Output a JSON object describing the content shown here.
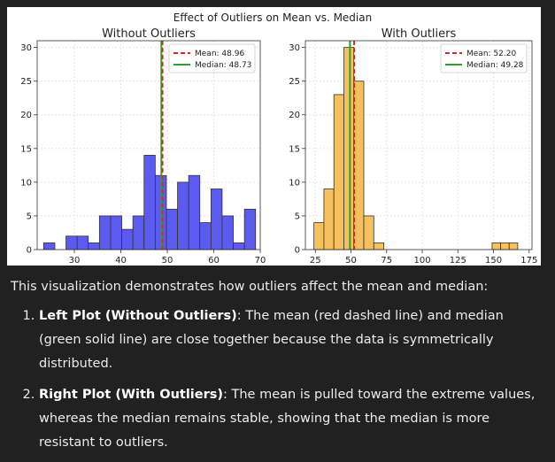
{
  "suptitle": "Effect of Outliers on Mean vs. Median",
  "chart_data": [
    {
      "type": "bar",
      "title": "Without Outliers",
      "xlim": [
        22,
        70
      ],
      "ylim": [
        0,
        31
      ],
      "xticks": [
        30,
        40,
        50,
        60,
        70
      ],
      "yticks": [
        0,
        5,
        10,
        15,
        20,
        25,
        30
      ],
      "bin_edges": [
        23.4,
        25.8,
        28.2,
        30.6,
        33.0,
        35.4,
        37.8,
        40.2,
        42.6,
        45.0,
        47.4,
        49.8,
        52.2,
        54.6,
        57.0,
        59.4,
        61.8,
        64.2,
        66.6,
        69.0
      ],
      "counts": [
        1,
        0,
        2,
        2,
        1,
        5,
        5,
        3,
        5,
        14,
        11,
        6,
        10,
        11,
        4,
        9,
        5,
        1,
        6
      ],
      "bar_color": "#5b5bf2",
      "mean": 48.96,
      "median": 48.73,
      "legend": [
        {
          "label": "Mean: 48.96",
          "color": "#d62728",
          "style": "dashed"
        },
        {
          "label": "Median: 48.73",
          "color": "#2ca02c",
          "style": "solid"
        }
      ]
    },
    {
      "type": "bar",
      "title": "With Outliers",
      "xlim": [
        18,
        177
      ],
      "ylim": [
        0,
        31
      ],
      "xticks": [
        25,
        50,
        75,
        100,
        125,
        150,
        175
      ],
      "yticks": [
        0,
        5,
        10,
        15,
        20,
        25,
        30
      ],
      "bin_edges": [
        24,
        31,
        38,
        45,
        52,
        59,
        66,
        73
      ],
      "counts": [
        4,
        9,
        23,
        30,
        25,
        5,
        1
      ],
      "outlier_edges": [
        149,
        155,
        161,
        167
      ],
      "outlier_counts": [
        1,
        1,
        1
      ],
      "bar_color": "#f6c05c",
      "mean": 52.2,
      "median": 49.28,
      "legend": [
        {
          "label": "Mean: 52.20",
          "color": "#d62728",
          "style": "dashed"
        },
        {
          "label": "Median: 49.28",
          "color": "#2ca02c",
          "style": "solid"
        }
      ]
    }
  ],
  "explanation": {
    "intro": "This visualization demonstrates how outliers affect the mean and median:",
    "items": [
      {
        "title": "Left Plot (Without Outliers)",
        "text": ": The mean (red dashed line) and median (green solid line) are close together because the data is symmetrically distributed."
      },
      {
        "title": "Right Plot (With Outliers)",
        "text": ": The mean is pulled toward the extreme values, whereas the median remains stable, showing that the median is more resistant to outliers."
      }
    ]
  }
}
